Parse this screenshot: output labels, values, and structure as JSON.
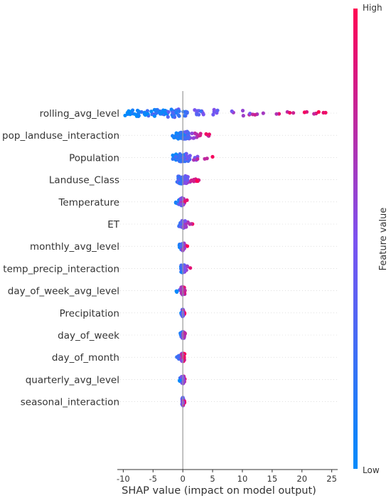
{
  "chart_data": {
    "type": "scatter",
    "subtype": "shap-beeswarm",
    "title": "",
    "xlabel": "SHAP value (impact on model output)",
    "ylabel": "",
    "xlim": [
      -11,
      26
    ],
    "x_ticks": [
      "-10",
      "-5",
      "0",
      "5",
      "10",
      "15",
      "20",
      "25"
    ],
    "x_tick_values": [
      -10,
      -5,
      0,
      5,
      10,
      15,
      20,
      25
    ],
    "grid": false,
    "colorbar": {
      "label": "Feature value",
      "high": "High",
      "low": "Low",
      "color_low": "#1e88e5",
      "color_high": "#ff0052"
    },
    "features": [
      {
        "name": "rolling_avg_level",
        "range": [
          -9.8,
          24.5
        ]
      },
      {
        "name": "pop_landuse_interaction",
        "range": [
          -1.8,
          4.8
        ]
      },
      {
        "name": "Population",
        "range": [
          -2.0,
          5.0
        ]
      },
      {
        "name": "Landuse_Class",
        "range": [
          -1.8,
          2.8
        ]
      },
      {
        "name": "Temperature",
        "range": [
          -1.2,
          0.8
        ]
      },
      {
        "name": "ET",
        "range": [
          -1.4,
          1.8
        ]
      },
      {
        "name": "monthly_avg_level",
        "range": [
          -0.8,
          0.8
        ]
      },
      {
        "name": "temp_precip_interaction",
        "range": [
          -0.6,
          1.3
        ]
      },
      {
        "name": "day_of_week_avg_level",
        "range": [
          -1.2,
          0.6
        ]
      },
      {
        "name": "Precipitation",
        "range": [
          -0.3,
          0.3
        ]
      },
      {
        "name": "day_of_week",
        "range": [
          -0.5,
          0.6
        ]
      },
      {
        "name": "day_of_month",
        "range": [
          -1.1,
          0.4
        ]
      },
      {
        "name": "quarterly_avg_level",
        "range": [
          -0.7,
          0.5
        ]
      },
      {
        "name": "seasonal_interaction",
        "range": [
          -0.3,
          0.3
        ]
      }
    ]
  }
}
